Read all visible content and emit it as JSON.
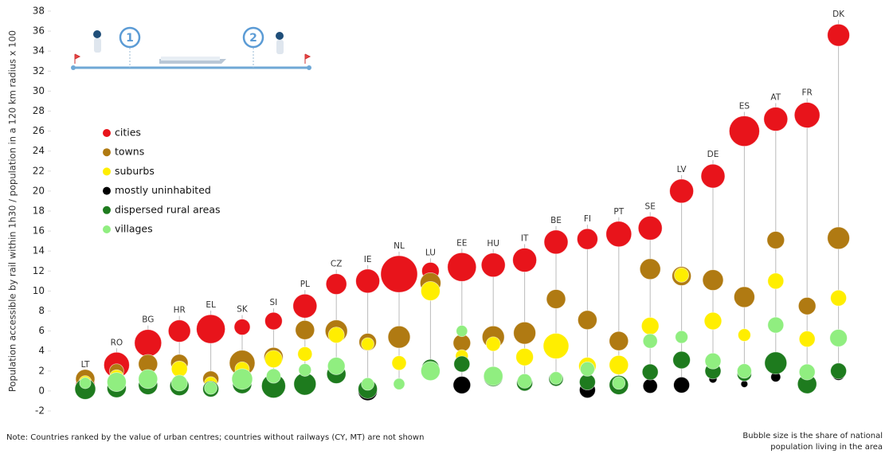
{
  "chart_data": {
    "type": "bubble",
    "y_label": "Population accessible by rail within 1h30 / population in a 120 km radius x 100",
    "ylim": [
      -2,
      38
    ],
    "yticks": [
      -2,
      0,
      2,
      4,
      6,
      8,
      10,
      12,
      14,
      16,
      18,
      20,
      22,
      24,
      26,
      28,
      30,
      32,
      34,
      36,
      38
    ],
    "categories": [
      "LT",
      "RO",
      "BG",
      "HR",
      "EL",
      "SK",
      "SI",
      "PL",
      "CZ",
      "IE",
      "NL",
      "LU",
      "EE",
      "HU",
      "IT",
      "BE",
      "FI",
      "PT",
      "SE",
      "LV",
      "DE",
      "ES",
      "AT",
      "FR",
      "DK"
    ],
    "series": [
      {
        "name": "cities",
        "color": "#e8141b",
        "values": [
          0.7,
          2.6,
          4.8,
          6.0,
          6.2,
          6.4,
          7.0,
          8.5,
          10.7,
          11.0,
          11.7,
          12.0,
          12.4,
          12.6,
          13.1,
          14.9,
          15.2,
          15.7,
          16.3,
          20.0,
          21.5,
          26.0,
          27.2,
          27.6,
          35.6
        ],
        "sizes": [
          23,
          41,
          46,
          31,
          52,
          16,
          19,
          36,
          27,
          36,
          85,
          19,
          52,
          36,
          36,
          36,
          27,
          41,
          36,
          36,
          36,
          58,
          36,
          41,
          31
        ]
      },
      {
        "name": "towns",
        "color": "#b07a12",
        "values": [
          1.2,
          2.0,
          2.7,
          2.8,
          1.2,
          2.8,
          3.4,
          6.1,
          6.0,
          4.9,
          5.4,
          10.8,
          4.8,
          5.4,
          5.8,
          9.2,
          7.1,
          5.0,
          12.2,
          11.5,
          11.1,
          9.4,
          15.1,
          8.5,
          15.3
        ],
        "sizes": [
          23,
          13,
          23,
          19,
          16,
          41,
          23,
          23,
          31,
          19,
          31,
          27,
          19,
          31,
          31,
          23,
          23,
          23,
          27,
          23,
          27,
          27,
          19,
          19,
          31
        ]
      },
      {
        "name": "suburbs",
        "color": "#ffee00",
        "values": [
          0.9,
          1.4,
          1.0,
          2.2,
          0.8,
          2.2,
          3.2,
          3.7,
          5.6,
          4.7,
          2.8,
          10.0,
          3.5,
          4.7,
          3.4,
          4.5,
          2.5,
          2.6,
          6.5,
          11.6,
          7.0,
          5.6,
          11.0,
          5.2,
          9.3
        ],
        "sizes": [
          10,
          13,
          10,
          16,
          10,
          13,
          19,
          13,
          16,
          10,
          13,
          23,
          10,
          13,
          19,
          41,
          19,
          23,
          19,
          13,
          19,
          10,
          16,
          16,
          16
        ]
      },
      {
        "name": "mostly uninhabited",
        "color": "#000000",
        "values": [
          null,
          null,
          null,
          null,
          null,
          null,
          null,
          null,
          1.4,
          0.0,
          null,
          null,
          0.6,
          null,
          null,
          1.2,
          0.1,
          null,
          0.5,
          0.6,
          1.2,
          0.7,
          1.4,
          null,
          1.7
        ],
        "sizes": [
          null,
          null,
          null,
          null,
          null,
          null,
          null,
          null,
          10,
          23,
          null,
          null,
          19,
          null,
          null,
          8,
          16,
          null,
          13,
          16,
          4,
          3,
          6,
          null,
          10
        ]
      },
      {
        "name": "dispersed rural areas",
        "color": "#1e7b1e",
        "values": [
          0.2,
          0.3,
          0.6,
          0.5,
          0.2,
          0.7,
          0.5,
          0.7,
          1.7,
          0.2,
          0.8,
          2.3,
          2.7,
          1.4,
          0.8,
          1.2,
          0.9,
          0.6,
          1.9,
          3.1,
          2.0,
          1.7,
          2.8,
          0.7,
          2.0
        ],
        "sizes": [
          27,
          23,
          23,
          23,
          16,
          23,
          36,
          31,
          23,
          23,
          6,
          19,
          16,
          23,
          16,
          13,
          16,
          23,
          16,
          19,
          16,
          13,
          31,
          23,
          16
        ]
      },
      {
        "name": "villages",
        "color": "#90ee80",
        "values": [
          0.8,
          0.9,
          1.2,
          0.8,
          0.3,
          1.2,
          1.5,
          2.1,
          2.5,
          0.7,
          0.7,
          2.0,
          6.0,
          1.5,
          1.0,
          1.3,
          2.2,
          0.8,
          5.0,
          5.4,
          3.0,
          2.0,
          6.6,
          1.9,
          5.3
        ],
        "sizes": [
          8,
          23,
          23,
          16,
          10,
          27,
          13,
          10,
          19,
          10,
          8,
          23,
          8,
          23,
          13,
          10,
          13,
          10,
          13,
          10,
          16,
          13,
          16,
          16,
          19
        ]
      }
    ],
    "markers": [
      "1",
      "2"
    ],
    "note": "Note: Countries ranked by the value of urban centres; countries without railways (CY, MT) are not shown",
    "size_note": [
      "Bubble size is the share of national",
      "population living in the area"
    ]
  }
}
